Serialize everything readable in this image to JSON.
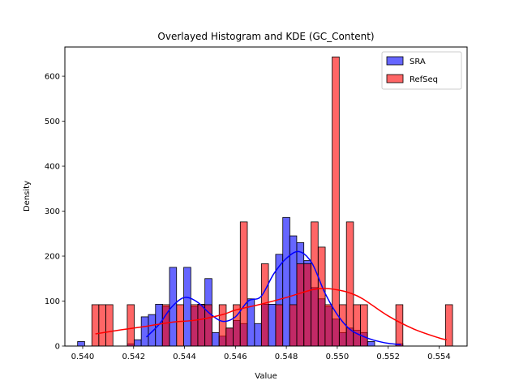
{
  "chart_data": {
    "type": "histogram",
    "title": "Overlayed Histogram and KDE (GC_Content)",
    "xlabel": "Value",
    "ylabel": "Density",
    "xlim": [
      0.5393,
      0.5551
    ],
    "ylim": [
      0,
      665
    ],
    "xticks": [
      0.54,
      0.542,
      0.544,
      0.546,
      0.548,
      0.55,
      0.552,
      0.554
    ],
    "xtick_labels": [
      "0.540",
      "0.542",
      "0.544",
      "0.546",
      "0.548",
      "0.550",
      "0.552",
      "0.554"
    ],
    "yticks": [
      0,
      100,
      200,
      300,
      400,
      500,
      600
    ],
    "ytick_labels": [
      "0",
      "100",
      "200",
      "300",
      "400",
      "500",
      "600"
    ],
    "grid": false,
    "legend_position": "top-right",
    "series": [
      {
        "name": "SRA",
        "color": "#0000ff",
        "bin_width": 0.0002776,
        "bin_starts": [
          0.5398,
          0.54008,
          0.54036,
          0.54063,
          0.54091,
          0.54119,
          0.54147,
          0.54175,
          0.54202,
          0.5423,
          0.54258,
          0.54286,
          0.54313,
          0.54341,
          0.54369,
          0.54397,
          0.54425,
          0.54452,
          0.5448,
          0.54508,
          0.54536,
          0.54563,
          0.54591,
          0.54619,
          0.54647,
          0.54675,
          0.54702,
          0.5473,
          0.54758,
          0.54786,
          0.54813,
          0.54841,
          0.54869,
          0.54897,
          0.54925,
          0.54952,
          0.5498,
          0.55008,
          0.55036,
          0.55063,
          0.55091,
          0.55119,
          0.55147,
          0.55175,
          0.55202,
          0.5523,
          0.55258
        ],
        "values": [
          10,
          0,
          0,
          0,
          0,
          0,
          0,
          5,
          14,
          65,
          70,
          93,
          88,
          175,
          0,
          175,
          88,
          93,
          150,
          30,
          22,
          40,
          57,
          50,
          105,
          50,
          93,
          93,
          204,
          286,
          245,
          230,
          190,
          130,
          105,
          88,
          60,
          30,
          40,
          35,
          30,
          10,
          0,
          0,
          0,
          5,
          0
        ]
      },
      {
        "name": "RefSeq",
        "color": "#ff0000",
        "bin_width": 0.0002776,
        "bin_starts": [
          0.54036,
          0.54063,
          0.54091,
          0.54119,
          0.54147,
          0.54175,
          0.54202,
          0.5423,
          0.54258,
          0.54286,
          0.54313,
          0.54341,
          0.54369,
          0.54397,
          0.54425,
          0.54452,
          0.5448,
          0.54508,
          0.54536,
          0.54563,
          0.54591,
          0.54619,
          0.54647,
          0.54675,
          0.54702,
          0.5473,
          0.54758,
          0.54786,
          0.54813,
          0.54841,
          0.54869,
          0.54897,
          0.54925,
          0.54952,
          0.5498,
          0.55008,
          0.55036,
          0.55063,
          0.55091,
          0.55119,
          0.55147,
          0.55175,
          0.55202,
          0.5523,
          0.55258,
          0.55286,
          0.55313,
          0.55341,
          0.55369,
          0.55397,
          0.55425
        ],
        "values": [
          92,
          92,
          92,
          0,
          0,
          92,
          0,
          0,
          0,
          0,
          92,
          0,
          92,
          0,
          92,
          92,
          92,
          0,
          92,
          40,
          92,
          276,
          0,
          0,
          183,
          0,
          92,
          0,
          92,
          183,
          183,
          276,
          220,
          92,
          643,
          92,
          276,
          92,
          92,
          0,
          0,
          0,
          0,
          92,
          0,
          0,
          0,
          0,
          0,
          0,
          92
        ]
      }
    ],
    "kde": [
      {
        "name": "SRA",
        "color": "#0000ff",
        "x": [
          0.5425,
          0.543,
          0.5435,
          0.544,
          0.5445,
          0.545,
          0.5455,
          0.546,
          0.5465,
          0.547,
          0.5475,
          0.548,
          0.5485,
          0.549,
          0.5495,
          0.55,
          0.5505,
          0.551,
          0.5515,
          0.552,
          0.5525
        ],
        "y": [
          20,
          48,
          87,
          108,
          98,
          72,
          55,
          65,
          100,
          110,
          160,
          195,
          210,
          185,
          120,
          70,
          37,
          22,
          12,
          6,
          3
        ]
      },
      {
        "name": "RefSeq",
        "color": "#ff0000",
        "x": [
          0.5405,
          0.5415,
          0.5425,
          0.5435,
          0.5445,
          0.5455,
          0.546,
          0.547,
          0.548,
          0.549,
          0.5495,
          0.55,
          0.5505,
          0.551,
          0.552,
          0.553,
          0.554,
          0.5543
        ],
        "y": [
          27,
          36,
          44,
          53,
          58,
          70,
          80,
          93,
          108,
          125,
          128,
          125,
          118,
          105,
          67,
          38,
          18,
          14
        ]
      }
    ]
  }
}
